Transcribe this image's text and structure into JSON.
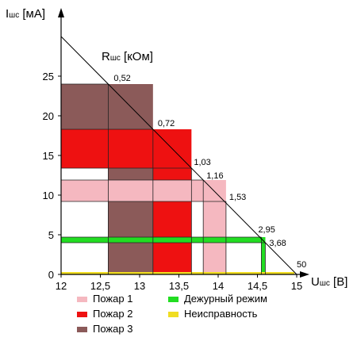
{
  "chart_data": {
    "type": "area",
    "x_axis": {
      "symbol": "U",
      "subscript": "шс",
      "unit": "[В]",
      "min": 12,
      "max": 15,
      "ticks": [
        "12",
        "12,5",
        "13",
        "13,5",
        "14",
        "14,5",
        "15"
      ]
    },
    "y_axis": {
      "symbol": "I",
      "subscript": "шс",
      "unit": "[мА]",
      "min": 0,
      "max": 30,
      "ticks": [
        "0",
        "5",
        "10",
        "15",
        "20",
        "25"
      ]
    },
    "diagonal_title": {
      "symbol": "R",
      "subscript": "шс",
      "unit": "[кОм]"
    },
    "load_line": {
      "from": [
        12,
        30
      ],
      "to": [
        15,
        0
      ]
    },
    "resistance_marks": [
      {
        "label": "0,52",
        "x": 12.6,
        "y": 24
      },
      {
        "label": "0,72",
        "x": 13.17,
        "y": 18.3
      },
      {
        "label": "1,03",
        "x": 13.66,
        "y": 13.4
      },
      {
        "label": "1,16",
        "x": 13.81,
        "y": 11.9
      },
      {
        "label": "1,53",
        "x": 14.1,
        "y": 9.2
      },
      {
        "label": "2,95",
        "x": 14.55,
        "y": 4.7
      },
      {
        "label": "3,68",
        "x": 14.6,
        "y": 4.0
      },
      {
        "label": "50",
        "x": 14.97,
        "y": 0.3
      }
    ],
    "zones": [
      {
        "state": "fire3",
        "x": [
          12,
          13.17
        ],
        "y": [
          18.3,
          24
        ]
      },
      {
        "state": "fire3",
        "x": [
          12.6,
          13.17
        ],
        "y": [
          0,
          18.3
        ]
      },
      {
        "state": "fire2",
        "x": [
          12,
          13.66
        ],
        "y": [
          13.4,
          18.3
        ]
      },
      {
        "state": "fire2",
        "x": [
          13.17,
          13.66
        ],
        "y": [
          0,
          13.4
        ]
      },
      {
        "state": "fire1",
        "x": [
          12,
          14.1
        ],
        "y": [
          9.2,
          11.9
        ]
      },
      {
        "state": "fire1",
        "x": [
          13.81,
          14.1
        ],
        "y": [
          0,
          9.2
        ]
      },
      {
        "state": "duty",
        "x": [
          12,
          14.6
        ],
        "y": [
          4.0,
          4.7
        ]
      },
      {
        "state": "duty",
        "x": [
          14.55,
          14.6
        ],
        "y": [
          0,
          4.7
        ]
      },
      {
        "state": "fault",
        "x": [
          12,
          14.97
        ],
        "y": [
          0,
          0.3
        ]
      }
    ],
    "legend": [
      {
        "id": "fire1",
        "label": "Пожар 1",
        "color": "#f5b8c0"
      },
      {
        "id": "fire2",
        "label": "Пожар 2",
        "color": "#ee1111"
      },
      {
        "id": "fire3",
        "label": "Пожар 3",
        "color": "#8b5a59"
      },
      {
        "id": "duty",
        "label": "Дежурный режим",
        "color": "#22dd22"
      },
      {
        "id": "fault",
        "label": "Неисправность",
        "color": "#f0dd22"
      }
    ],
    "grid": true,
    "legend_position": "bottom"
  }
}
